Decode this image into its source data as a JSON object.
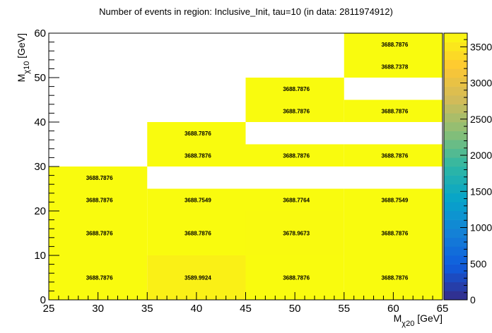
{
  "chart_data": {
    "type": "heatmap",
    "title": "Number of events in region: Inclusive_Init, tau=10 (in data: 2811974912)",
    "xlabel": "M_χ20 [GeV]",
    "ylabel": "M_χ10 [GeV]",
    "xlim": [
      25,
      65
    ],
    "ylim": [
      0,
      60
    ],
    "x_ticks": [
      25,
      30,
      35,
      40,
      45,
      50,
      55,
      60,
      65
    ],
    "y_ticks": [
      0,
      10,
      20,
      30,
      40,
      50,
      60
    ],
    "zlim": [
      0,
      3688.7876
    ],
    "z_ticks": [
      0,
      500,
      1000,
      1500,
      2000,
      2500,
      3000,
      3500
    ],
    "colormap": [
      "#352a87",
      "#0f5cdd",
      "#1481d6",
      "#06a4ca",
      "#2eb7a4",
      "#87bf77",
      "#d1bb59",
      "#fec832",
      "#f9fb0e"
    ],
    "cells": [
      {
        "x": [
          25,
          35
        ],
        "y": [
          0,
          10
        ],
        "value": 3688.7876,
        "label": "3688.7876"
      },
      {
        "x": [
          35,
          45
        ],
        "y": [
          0,
          10
        ],
        "value": 3589.9924,
        "label": "3589.9924"
      },
      {
        "x": [
          45,
          55
        ],
        "y": [
          0,
          10
        ],
        "value": 3688.7876,
        "label": "3688.7876"
      },
      {
        "x": [
          55,
          65
        ],
        "y": [
          0,
          10
        ],
        "value": 3688.7876,
        "label": "3688.7876"
      },
      {
        "x": [
          25,
          35
        ],
        "y": [
          10,
          20
        ],
        "value": 3688.7876,
        "label": "3688.7876"
      },
      {
        "x": [
          35,
          45
        ],
        "y": [
          10,
          20
        ],
        "value": 3688.7876,
        "label": "3688.7876"
      },
      {
        "x": [
          45,
          55
        ],
        "y": [
          10,
          20
        ],
        "value": 3678.9673,
        "label": "3678.9673"
      },
      {
        "x": [
          55,
          65
        ],
        "y": [
          10,
          20
        ],
        "value": 3688.7876,
        "label": "3688.7876"
      },
      {
        "x": [
          25,
          35
        ],
        "y": [
          20,
          25
        ],
        "value": 3688.7876,
        "label": "3688.7876"
      },
      {
        "x": [
          35,
          45
        ],
        "y": [
          20,
          25
        ],
        "value": 3688.7549,
        "label": "3688.7549"
      },
      {
        "x": [
          45,
          55
        ],
        "y": [
          20,
          25
        ],
        "value": 3688.7764,
        "label": "3688.7764"
      },
      {
        "x": [
          55,
          65
        ],
        "y": [
          20,
          25
        ],
        "value": 3688.7549,
        "label": "3688.7549"
      },
      {
        "x": [
          25,
          35
        ],
        "y": [
          25,
          30
        ],
        "value": 3688.7876,
        "label": "3688.7876"
      },
      {
        "x": [
          35,
          45
        ],
        "y": [
          30,
          35
        ],
        "value": 3688.7876,
        "label": "3688.7876"
      },
      {
        "x": [
          45,
          55
        ],
        "y": [
          30,
          35
        ],
        "value": 3688.7876,
        "label": "3688.7876"
      },
      {
        "x": [
          55,
          65
        ],
        "y": [
          30,
          35
        ],
        "value": 3688.7876,
        "label": "3688.7876"
      },
      {
        "x": [
          35,
          45
        ],
        "y": [
          35,
          40
        ],
        "value": 3688.7876,
        "label": "3688.7876"
      },
      {
        "x": [
          45,
          55
        ],
        "y": [
          40,
          45
        ],
        "value": 3688.7876,
        "label": "3688.7876"
      },
      {
        "x": [
          55,
          65
        ],
        "y": [
          40,
          45
        ],
        "value": 3688.7876,
        "label": "3688.7876"
      },
      {
        "x": [
          45,
          55
        ],
        "y": [
          45,
          50
        ],
        "value": 3688.7876,
        "label": "3688.7876"
      },
      {
        "x": [
          55,
          65
        ],
        "y": [
          50,
          55
        ],
        "value": 3688.7378,
        "label": "3688.7378"
      },
      {
        "x": [
          55,
          65
        ],
        "y": [
          55,
          60
        ],
        "value": 3688.7876,
        "label": "3688.7876"
      }
    ]
  }
}
